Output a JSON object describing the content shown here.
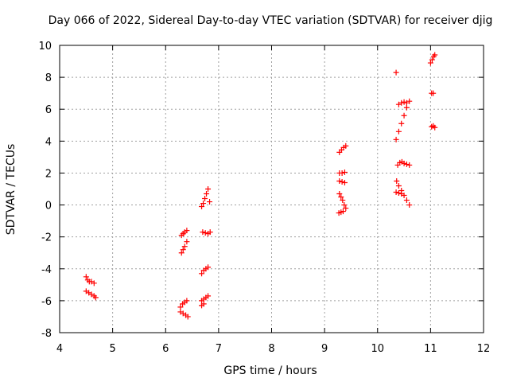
{
  "chart_data": {
    "type": "scatter",
    "title": "Day 066 of 2022, Sidereal Day-to-day VTEC variation (SDTVAR) for receiver djig",
    "xlabel": "GPS time / hours",
    "ylabel": "SDTVAR / TECUs",
    "xlim": [
      4,
      12
    ],
    "ylim": [
      -8,
      10
    ],
    "xticks": [
      "4",
      "5",
      "6",
      "7",
      "8",
      "9",
      "10",
      "11",
      "12"
    ],
    "yticks": [
      "-8",
      "-6",
      "-4",
      "-2",
      "0",
      "2",
      "4",
      "6",
      "8",
      "10"
    ],
    "grid": true,
    "marker": "+",
    "color": "#ff0000",
    "series": [
      {
        "points": [
          [
            4.5,
            -4.5
          ],
          [
            4.53,
            -4.7
          ],
          [
            4.56,
            -4.8
          ],
          [
            4.6,
            -4.8
          ],
          [
            4.65,
            -4.9
          ],
          [
            4.5,
            -5.4
          ],
          [
            4.55,
            -5.5
          ],
          [
            4.6,
            -5.6
          ],
          [
            4.65,
            -5.7
          ],
          [
            4.68,
            -5.8
          ],
          [
            6.3,
            -1.9
          ],
          [
            6.33,
            -1.8
          ],
          [
            6.36,
            -1.7
          ],
          [
            6.4,
            -1.6
          ],
          [
            6.3,
            -3.0
          ],
          [
            6.33,
            -2.8
          ],
          [
            6.36,
            -2.6
          ],
          [
            6.4,
            -2.3
          ],
          [
            6.28,
            -6.4
          ],
          [
            6.32,
            -6.2
          ],
          [
            6.36,
            -6.1
          ],
          [
            6.4,
            -6.0
          ],
          [
            6.28,
            -6.7
          ],
          [
            6.33,
            -6.8
          ],
          [
            6.38,
            -6.9
          ],
          [
            6.42,
            -7.0
          ],
          [
            6.68,
            -0.1
          ],
          [
            6.71,
            0.1
          ],
          [
            6.74,
            0.4
          ],
          [
            6.77,
            0.7
          ],
          [
            6.8,
            1.0
          ],
          [
            6.83,
            0.2
          ],
          [
            6.7,
            -1.7
          ],
          [
            6.75,
            -1.75
          ],
          [
            6.8,
            -1.8
          ],
          [
            6.84,
            -1.7
          ],
          [
            6.68,
            -4.3
          ],
          [
            6.72,
            -4.1
          ],
          [
            6.76,
            -4.0
          ],
          [
            6.8,
            -3.9
          ],
          [
            6.68,
            -6.0
          ],
          [
            6.72,
            -5.9
          ],
          [
            6.76,
            -5.8
          ],
          [
            6.8,
            -5.7
          ],
          [
            6.68,
            -6.3
          ],
          [
            6.72,
            -6.2
          ],
          [
            9.28,
            3.3
          ],
          [
            9.32,
            3.45
          ],
          [
            9.36,
            3.6
          ],
          [
            9.4,
            3.7
          ],
          [
            9.28,
            2.0
          ],
          [
            9.33,
            2.0
          ],
          [
            9.38,
            2.05
          ],
          [
            9.28,
            1.5
          ],
          [
            9.33,
            1.45
          ],
          [
            9.38,
            1.4
          ],
          [
            9.28,
            0.7
          ],
          [
            9.31,
            0.5
          ],
          [
            9.34,
            0.3
          ],
          [
            9.37,
            0.0
          ],
          [
            9.4,
            -0.2
          ],
          [
            9.27,
            -0.5
          ],
          [
            9.31,
            -0.45
          ],
          [
            9.35,
            -0.4
          ],
          [
            10.35,
            8.3
          ],
          [
            10.4,
            6.3
          ],
          [
            10.45,
            6.4
          ],
          [
            10.5,
            6.45
          ],
          [
            10.55,
            6.4
          ],
          [
            10.35,
            4.1
          ],
          [
            10.4,
            4.6
          ],
          [
            10.45,
            5.1
          ],
          [
            10.5,
            5.6
          ],
          [
            10.55,
            6.1
          ],
          [
            10.6,
            6.5
          ],
          [
            10.38,
            2.5
          ],
          [
            10.42,
            2.65
          ],
          [
            10.46,
            2.7
          ],
          [
            10.5,
            2.6
          ],
          [
            10.55,
            2.55
          ],
          [
            10.6,
            2.5
          ],
          [
            10.36,
            1.5
          ],
          [
            10.4,
            1.2
          ],
          [
            10.45,
            0.9
          ],
          [
            10.5,
            0.6
          ],
          [
            10.55,
            0.3
          ],
          [
            10.6,
            0.0
          ],
          [
            10.35,
            0.8
          ],
          [
            10.4,
            0.75
          ],
          [
            10.45,
            0.7
          ],
          [
            11.0,
            8.9
          ],
          [
            11.03,
            9.1
          ],
          [
            11.06,
            9.3
          ],
          [
            11.08,
            9.4
          ],
          [
            11.02,
            7.0
          ],
          [
            11.05,
            7.0
          ],
          [
            11.02,
            4.9
          ],
          [
            11.05,
            4.95
          ],
          [
            11.08,
            4.85
          ]
        ]
      }
    ]
  }
}
